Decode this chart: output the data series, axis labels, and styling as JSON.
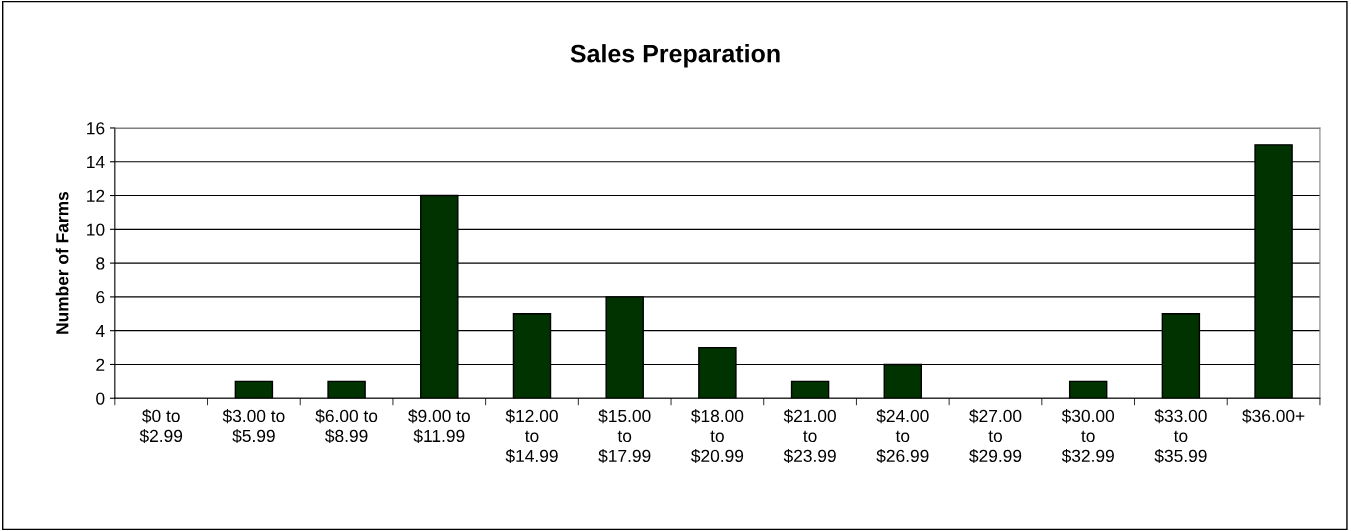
{
  "chart_data": {
    "type": "bar",
    "title": "Sales Preparation",
    "ylabel": "Number of Farms",
    "categories": [
      "$0 to\n$2.99",
      "$3.00 to\n$5.99",
      "$6.00 to\n$8.99",
      "$9.00 to\n$11.99",
      "$12.00\nto\n$14.99",
      "$15.00\nto\n$17.99",
      "$18.00\nto\n$20.99",
      "$21.00\nto\n$23.99",
      "$24.00\nto\n$26.99",
      "$27.00\nto\n$29.99",
      "$30.00\nto\n$32.99",
      "$33.00\nto\n$35.99",
      "$36.00+"
    ],
    "values": [
      0,
      1,
      1,
      12,
      5,
      6,
      3,
      1,
      2,
      0,
      1,
      5,
      15
    ],
    "color": "#003300",
    "ylim": [
      0,
      16
    ],
    "yticks": [
      0,
      2,
      4,
      6,
      8,
      10,
      12,
      14,
      16
    ],
    "grid": "y",
    "legend": false
  }
}
